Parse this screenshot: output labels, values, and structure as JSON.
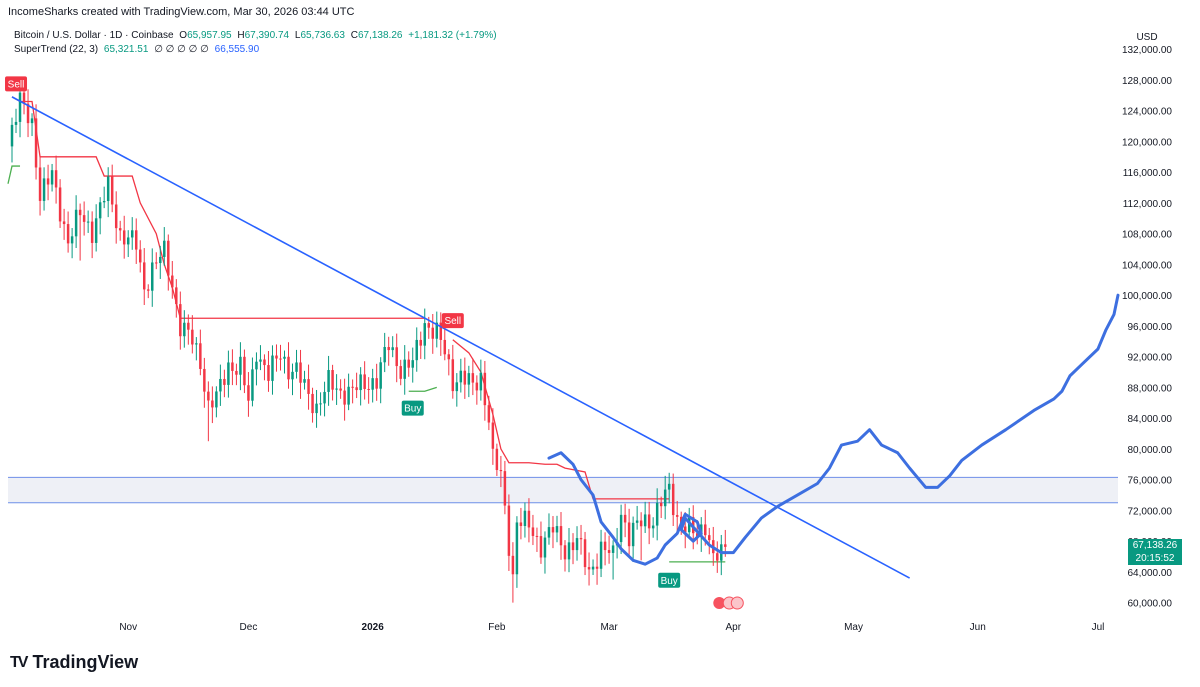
{
  "header": {
    "attribution": "IncomeSharks created with TradingView.com, Mar 30, 2026 03:44 UTC"
  },
  "legend": {
    "symbol": "Bitcoin / U.S. Dollar · 1D · Coinbase",
    "o_label": "O",
    "o": "65,957.95",
    "h_label": "H",
    "h": "67,390.74",
    "l_label": "L",
    "l": "65,736.63",
    "c_label": "C",
    "c": "67,138.26",
    "change": "+1,181.32 (+1.79%)",
    "indicator": "SuperTrend (22, 3)",
    "st_low": "65,321.51",
    "st_zeros": "∅ ∅ ∅ ∅ ∅",
    "st_high": "66,555.90"
  },
  "price_box": {
    "price": "67,138.26",
    "countdown": "20:15:52"
  },
  "brand": {
    "name": "TradingView",
    "mark": "TV"
  },
  "colors": {
    "up": "#089981",
    "down": "#f23645",
    "trend_line": "#2962ff",
    "projection": "#3d6fe0",
    "supertrend_down": "#f23645",
    "supertrend_up": "#4caf50",
    "zone_fill": "#eef0f6",
    "zone_line": "#6f8fe8"
  },
  "chart_data": {
    "type": "candlestick",
    "symbol": "Bitcoin / U.S. Dollar",
    "timeframe": "1D",
    "exchange": "Coinbase",
    "y_axis_unit": "USD",
    "ylim": [
      58000,
      134500
    ],
    "y_ticks": [
      "132,000.00",
      "128,000.00",
      "124,000.00",
      "120,000.00",
      "116,000.00",
      "112,000.00",
      "108,000.00",
      "104,000.00",
      "100,000.00",
      "96,000.00",
      "92,000.00",
      "88,000.00",
      "84,000.00",
      "80,000.00",
      "76,000.00",
      "72,000.00",
      "68,000.00",
      "64,000.00",
      "60,000.00"
    ],
    "x_ticks": [
      {
        "label": "Nov",
        "date": "2025-11-01"
      },
      {
        "label": "Dec",
        "date": "2025-12-01"
      },
      {
        "label": "2026",
        "date": "2026-01-01",
        "bold": true
      },
      {
        "label": "Feb",
        "date": "2026-02-01"
      },
      {
        "label": "Mar",
        "date": "2026-03-01"
      },
      {
        "label": "Apr",
        "date": "2026-04-01"
      },
      {
        "label": "May",
        "date": "2026-05-01"
      },
      {
        "label": "Jun",
        "date": "2026-06-01"
      },
      {
        "label": "Jul",
        "date": "2026-07-01"
      }
    ],
    "x_start": "2025-10-02",
    "x_end": "2026-07-06",
    "close_path": [
      [
        "2025-10-02",
        120000
      ],
      [
        "2025-10-05",
        125000
      ],
      [
        "2025-10-08",
        122500
      ],
      [
        "2025-10-10",
        113000
      ],
      [
        "2025-10-13",
        115500
      ],
      [
        "2025-10-17",
        107000
      ],
      [
        "2025-10-20",
        110500
      ],
      [
        "2025-10-23",
        108500
      ],
      [
        "2025-10-27",
        114000
      ],
      [
        "2025-10-30",
        108000
      ],
      [
        "2025-11-03",
        106500
      ],
      [
        "2025-11-05",
        101000
      ],
      [
        "2025-11-07",
        103500
      ],
      [
        "2025-11-10",
        105500
      ],
      [
        "2025-11-12",
        101500
      ],
      [
        "2025-11-14",
        96000
      ],
      [
        "2025-11-17",
        94000
      ],
      [
        "2025-11-19",
        91500
      ],
      [
        "2025-11-21",
        85500
      ],
      [
        "2025-11-23",
        86500
      ],
      [
        "2025-11-26",
        91000
      ],
      [
        "2025-11-29",
        90500
      ],
      [
        "2025-12-01",
        86000
      ],
      [
        "2025-12-03",
        93000
      ],
      [
        "2025-12-06",
        89500
      ],
      [
        "2025-12-09",
        92500
      ],
      [
        "2025-12-11",
        90500
      ],
      [
        "2025-12-13",
        90000
      ],
      [
        "2025-12-16",
        87000
      ],
      [
        "2025-12-18",
        85500
      ],
      [
        "2025-12-21",
        88500
      ],
      [
        "2025-12-24",
        87500
      ],
      [
        "2025-12-27",
        87500
      ],
      [
        "2025-12-30",
        88500
      ],
      [
        "2026-01-02",
        89000
      ],
      [
        "2026-01-05",
        93500
      ],
      [
        "2026-01-08",
        90500
      ],
      [
        "2026-01-11",
        91000
      ],
      [
        "2026-01-14",
        96500
      ],
      [
        "2026-01-17",
        95000
      ],
      [
        "2026-01-19",
        92500
      ],
      [
        "2026-01-21",
        89000
      ],
      [
        "2026-01-23",
        89500
      ],
      [
        "2026-01-26",
        88000
      ],
      [
        "2026-01-28",
        89500
      ],
      [
        "2026-01-30",
        84000
      ],
      [
        "2026-01-31",
        78500
      ],
      [
        "2026-02-02",
        76500
      ],
      [
        "2026-02-05",
        63500
      ],
      [
        "2026-02-06",
        70500
      ],
      [
        "2026-02-09",
        70000
      ],
      [
        "2026-02-12",
        67500
      ],
      [
        "2026-02-15",
        69500
      ],
      [
        "2026-02-18",
        67000
      ],
      [
        "2026-02-21",
        68000
      ],
      [
        "2026-02-24",
        64000
      ],
      [
        "2026-02-27",
        67000
      ],
      [
        "2026-03-02",
        66000
      ],
      [
        "2026-03-04",
        72000
      ],
      [
        "2026-03-06",
        68500
      ],
      [
        "2026-03-09",
        70500
      ],
      [
        "2026-03-12",
        71000
      ],
      [
        "2026-03-14",
        73000
      ],
      [
        "2026-03-16",
        74500
      ],
      [
        "2026-03-18",
        71000
      ],
      [
        "2026-03-20",
        70000
      ],
      [
        "2026-03-23",
        68500
      ],
      [
        "2026-03-25",
        70500
      ],
      [
        "2026-03-27",
        66000
      ],
      [
        "2026-03-29",
        65958
      ],
      [
        "2026-03-30",
        67138
      ]
    ],
    "low_wicks": [
      [
        "2025-10-20",
        104500
      ],
      [
        "2025-11-14",
        99000
      ],
      [
        "2025-11-21",
        81000
      ],
      [
        "2026-02-05",
        60000
      ],
      [
        "2026-02-24",
        62500
      ],
      [
        "2026-03-02",
        63000
      ],
      [
        "2026-03-09",
        65500
      ]
    ],
    "supertrend": {
      "down_segments": [
        [
          [
            "2025-10-03",
            125800
          ],
          [
            "2025-10-05",
            125200
          ],
          [
            "2025-10-08",
            125200
          ],
          [
            "2025-10-10",
            118000
          ],
          [
            "2025-10-24",
            118000
          ],
          [
            "2025-10-26",
            115500
          ],
          [
            "2025-11-02",
            115500
          ],
          [
            "2025-11-04",
            112000
          ],
          [
            "2025-11-08",
            108000
          ],
          [
            "2025-11-10",
            104000
          ],
          [
            "2025-11-12",
            101000
          ],
          [
            "2025-11-14",
            97000
          ],
          [
            "2025-11-15",
            97000
          ],
          [
            "2026-01-14",
            97000
          ]
        ],
        [
          [
            "2026-01-21",
            94200
          ],
          [
            "2026-01-25",
            92500
          ],
          [
            "2026-01-28",
            90000
          ],
          [
            "2026-01-31",
            84500
          ],
          [
            "2026-02-02",
            80000
          ],
          [
            "2026-02-04",
            78200
          ],
          [
            "2026-02-09",
            78200
          ],
          [
            "2026-02-13",
            78000
          ],
          [
            "2026-02-16",
            78000
          ],
          [
            "2026-02-18",
            77500
          ],
          [
            "2026-02-23",
            77000
          ],
          [
            "2026-02-25",
            73500
          ],
          [
            "2026-03-16",
            73500
          ]
        ]
      ],
      "up_segments": [
        [
          [
            "2025-10-02",
            114500
          ],
          [
            "2025-10-03",
            116800
          ],
          [
            "2025-10-05",
            116800
          ]
        ],
        [
          [
            "2026-01-10",
            87500
          ],
          [
            "2026-01-14",
            87500
          ],
          [
            "2026-01-17",
            88000
          ]
        ],
        [
          [
            "2026-03-16",
            65300
          ],
          [
            "2026-03-30",
            65300
          ]
        ]
      ],
      "signals": [
        {
          "label": "Sell",
          "date": "2025-10-04",
          "price": 126000
        },
        {
          "label": "Buy",
          "date": "2026-01-11",
          "price": 86800
        },
        {
          "label": "Sell",
          "date": "2026-01-21",
          "price": 95200
        },
        {
          "label": "Buy",
          "date": "2026-03-16",
          "price": 64400
        }
      ]
    },
    "trend_line": {
      "from": [
        "2025-10-03",
        125800
      ],
      "to": [
        "2026-05-15",
        63200
      ]
    },
    "zone": {
      "top": 76300,
      "bottom": 73000
    },
    "projection_path": [
      [
        "2026-02-14",
        78800
      ],
      [
        "2026-02-17",
        79500
      ],
      [
        "2026-02-20",
        78000
      ],
      [
        "2026-02-22",
        76000
      ],
      [
        "2026-02-25",
        74000
      ],
      [
        "2026-02-27",
        70500
      ],
      [
        "2026-03-02",
        68500
      ],
      [
        "2026-03-04",
        67000
      ],
      [
        "2026-03-07",
        65500
      ],
      [
        "2026-03-10",
        65000
      ],
      [
        "2026-03-13",
        65800
      ],
      [
        "2026-03-15",
        67500
      ],
      [
        "2026-03-18",
        69000
      ],
      [
        "2026-03-20",
        71500
      ],
      [
        "2026-03-23",
        70500
      ],
      [
        "2026-03-24",
        69000
      ],
      [
        "2026-03-22",
        68000
      ],
      [
        "2026-03-19",
        69500
      ],
      [
        "2026-03-20",
        71000
      ],
      [
        "2026-03-26",
        67500
      ],
      [
        "2026-03-29",
        66500
      ],
      [
        "2026-04-01",
        66500
      ],
      [
        "2026-04-04",
        68500
      ],
      [
        "2026-04-08",
        71000
      ],
      [
        "2026-04-12",
        72500
      ],
      [
        "2026-04-17",
        74000
      ],
      [
        "2026-04-22",
        75500
      ],
      [
        "2026-04-25",
        77500
      ],
      [
        "2026-04-28",
        80500
      ],
      [
        "2026-05-02",
        81000
      ],
      [
        "2026-05-05",
        82500
      ],
      [
        "2026-05-08",
        80500
      ],
      [
        "2026-05-12",
        79500
      ],
      [
        "2026-05-15",
        77500
      ],
      [
        "2026-05-19",
        75000
      ],
      [
        "2026-05-22",
        75000
      ],
      [
        "2026-05-25",
        76500
      ],
      [
        "2026-05-28",
        78500
      ],
      [
        "2026-06-02",
        80500
      ],
      [
        "2026-06-08",
        82500
      ],
      [
        "2026-06-15",
        85000
      ],
      [
        "2026-06-20",
        86500
      ],
      [
        "2026-06-22",
        87500
      ],
      [
        "2026-06-24",
        89500
      ],
      [
        "2026-06-27",
        91000
      ],
      [
        "2026-07-01",
        93000
      ],
      [
        "2026-07-03",
        95500
      ],
      [
        "2026-07-05",
        97500
      ],
      [
        "2026-07-06",
        100000
      ]
    ]
  }
}
